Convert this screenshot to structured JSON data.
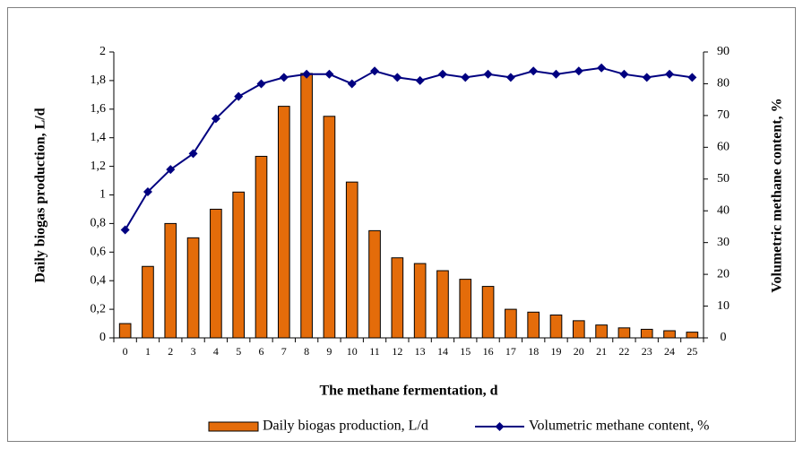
{
  "chart_data": {
    "type": "bar-line",
    "xlabel": "The methane fermentation, d",
    "ylabel": "Daily biogas production, L/d",
    "y2label": "Volumetric methane content, %",
    "categories": [
      "0",
      "1",
      "2",
      "3",
      "4",
      "5",
      "6",
      "7",
      "8",
      "9",
      "10",
      "11",
      "12",
      "13",
      "14",
      "15",
      "16",
      "17",
      "18",
      "19",
      "20",
      "21",
      "22",
      "23",
      "24",
      "25"
    ],
    "series": [
      {
        "name": "Daily biogas production, L/d",
        "type": "bar",
        "color": "#e46c0a",
        "values": [
          0.1,
          0.5,
          0.8,
          0.7,
          0.9,
          1.02,
          1.27,
          1.62,
          1.85,
          1.55,
          1.09,
          0.75,
          0.56,
          0.52,
          0.47,
          0.41,
          0.36,
          0.2,
          0.18,
          0.16,
          0.12,
          0.09,
          0.07,
          0.06,
          0.05,
          0.04
        ]
      },
      {
        "name": "Volumetric methane content, %",
        "type": "line",
        "axis": "y2",
        "color": "#000080",
        "values": [
          34,
          46,
          53,
          58,
          69,
          76,
          80,
          82,
          83,
          83,
          80,
          84,
          82,
          81,
          83,
          82,
          83,
          82,
          84,
          83,
          84,
          85,
          83,
          82,
          83,
          82
        ]
      }
    ],
    "ylim": [
      0,
      2
    ],
    "yticks": [
      0,
      {
        "value": 0.2,
        "label": "0,2"
      },
      {
        "value": 0.4,
        "label": "0,4"
      },
      {
        "value": 0.6,
        "label": "0,6"
      },
      {
        "value": 0.8,
        "label": "0,8"
      },
      1,
      {
        "value": 1.2,
        "label": "1,2"
      },
      {
        "value": 1.4,
        "label": "1,4"
      },
      {
        "value": 1.6,
        "label": "1,6"
      },
      {
        "value": 1.8,
        "label": "1,8"
      },
      2
    ],
    "y2lim": [
      0,
      90
    ],
    "y2ticks": [
      0,
      10,
      20,
      30,
      40,
      50,
      60,
      70,
      80,
      90
    ],
    "grid": false
  }
}
